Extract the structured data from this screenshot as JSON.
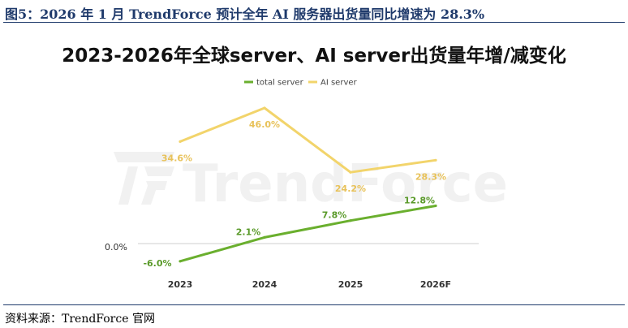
{
  "figure": {
    "caption": "图5：2026 年 1 月 TrendForce 预计全年 AI 服务器出货量同比增速为 28.3%",
    "source": "资料来源：TrendForce 官网",
    "watermark": "TrendForce"
  },
  "colors": {
    "caption": "#1f3a6b",
    "total_server": "#6aaf2e",
    "ai_server": "#f2d46b",
    "ai_label": "#e8c25a",
    "total_label": "#5a9a2a",
    "watermark": "#e6e6e6"
  },
  "chart_data": {
    "type": "line",
    "title": "2023-2026年全球server、AI server出货量年增/减变化",
    "categories": [
      "2023",
      "2024",
      "2025",
      "2026F"
    ],
    "series": [
      {
        "name": "total server",
        "values": [
          -6.0,
          2.1,
          7.8,
          12.8
        ],
        "labels": [
          "-6.0%",
          "2.1%",
          "7.8%",
          "12.8%"
        ]
      },
      {
        "name": "AI server",
        "values": [
          34.6,
          46.0,
          24.2,
          28.3
        ],
        "labels": [
          "34.6%",
          "46.0%",
          "24.2%",
          "28.3%"
        ]
      }
    ],
    "y_tick_labels": [
      "0.0%"
    ],
    "ylim": [
      -6.5,
      46
    ],
    "legend_position": "top-center",
    "grid": false
  }
}
